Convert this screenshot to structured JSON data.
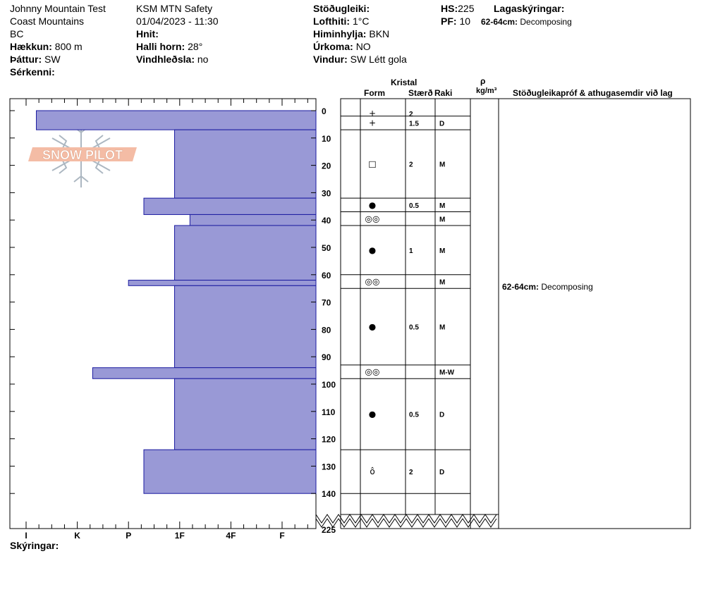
{
  "header": {
    "col1": {
      "location": "Johnny Mountain Test",
      "range": "Coast Mountains",
      "state": "BC",
      "elevation_label": "Hækkun:",
      "elevation_value": "800 m",
      "aspect_label": "Þáttur:",
      "aspect_value": "SW",
      "features_label": "Sérkenni:"
    },
    "col2": {
      "operation": "KSM MTN Safety",
      "datetime": "01/04/2023 - 11:30",
      "coords_label": "Hnit:",
      "slope_label": "Halli horn:",
      "slope_value": "28°",
      "wind_loading_label": "Vindhleðsla:",
      "wind_loading_value": "no"
    },
    "col3": {
      "stability_label": "Stöðugleiki:",
      "air_temp_label": "Lofthiti:",
      "air_temp_value": "1°C",
      "sky_label": "Himinhylja:",
      "sky_value": "BKN",
      "precip_label": "Úrkoma:",
      "precip_value": "NO",
      "wind_label": "Vindur:",
      "wind_value": "SW Létt gola"
    },
    "col4": {
      "hs_label": "HS:",
      "hs_value": "225",
      "pf_label": "PF:",
      "pf_value": "10",
      "layer_notes_label": "Lagaskýringar:",
      "layer_note_range": "62-64cm:",
      "layer_note_text": "Decomposing"
    }
  },
  "logo_text": "SNOW PILOT",
  "columns": {
    "kristal": "Kristal",
    "form": "Form",
    "size": "Stærð",
    "moisture": "Raki",
    "rho": "ρ",
    "density_unit": "kg/m³",
    "tests": "Stöðugleikapróf & athugasemdir við lag"
  },
  "footer": {
    "legend_label": "Skýringar:"
  },
  "comment": {
    "range": "62-64cm:",
    "text": "Decomposing"
  },
  "colors": {
    "layer_fill": "#9999d6",
    "layer_stroke": "#1a1aa0",
    "logo_fill": "#f0a080"
  },
  "chart_data": {
    "type": "bar",
    "description_axis_y": "depth from surface (cm)",
    "ylim": [
      0,
      145
    ],
    "y_ticks": [
      0,
      10,
      20,
      30,
      40,
      50,
      60,
      70,
      80,
      90,
      100,
      110,
      120,
      130,
      140
    ],
    "y_break_label": "225",
    "hardness_ticks": [
      "I",
      "K",
      "P",
      "1F",
      "4F",
      "F"
    ],
    "layers": [
      {
        "top": 0,
        "bottom": 7,
        "hardness": 0.2
      },
      {
        "top": 7,
        "bottom": 32,
        "hardness": 2.9
      },
      {
        "top": 32,
        "bottom": 38,
        "hardness": 2.3
      },
      {
        "top": 38,
        "bottom": 42,
        "hardness": 3.2
      },
      {
        "top": 42,
        "bottom": 62,
        "hardness": 2.9
      },
      {
        "top": 62,
        "bottom": 64,
        "hardness": 2.0
      },
      {
        "top": 64,
        "bottom": 94,
        "hardness": 2.9
      },
      {
        "top": 94,
        "bottom": 98,
        "hardness": 1.3
      },
      {
        "top": 98,
        "bottom": 124,
        "hardness": 2.9
      },
      {
        "top": 124,
        "bottom": 140,
        "hardness": 2.3
      }
    ],
    "grain_rows": [
      {
        "top": 0,
        "bottom": 2,
        "form": "+",
        "size": "2",
        "moisture": ""
      },
      {
        "top": 2,
        "bottom": 7,
        "form": "+",
        "size": "1.5",
        "moisture": "D"
      },
      {
        "top": 7,
        "bottom": 32,
        "form": "□",
        "size": "2",
        "moisture": "M"
      },
      {
        "top": 32,
        "bottom": 37,
        "form": "●",
        "size": "0.5",
        "moisture": "M"
      },
      {
        "top": 37,
        "bottom": 42,
        "form": "◎◎",
        "size": "",
        "moisture": "M"
      },
      {
        "top": 42,
        "bottom": 60,
        "form": "●",
        "size": "1",
        "moisture": "M"
      },
      {
        "top": 60,
        "bottom": 65,
        "form": "◎◎",
        "size": "",
        "moisture": "M"
      },
      {
        "top": 65,
        "bottom": 93,
        "form": "●",
        "size": "0.5",
        "moisture": "M"
      },
      {
        "top": 93,
        "bottom": 98,
        "form": "◎◎",
        "size": "",
        "moisture": "M-W"
      },
      {
        "top": 98,
        "bottom": 124,
        "form": "●",
        "size": "0.5",
        "moisture": "D"
      },
      {
        "top": 124,
        "bottom": 140,
        "form": "ô",
        "size": "2",
        "moisture": "D"
      }
    ]
  }
}
